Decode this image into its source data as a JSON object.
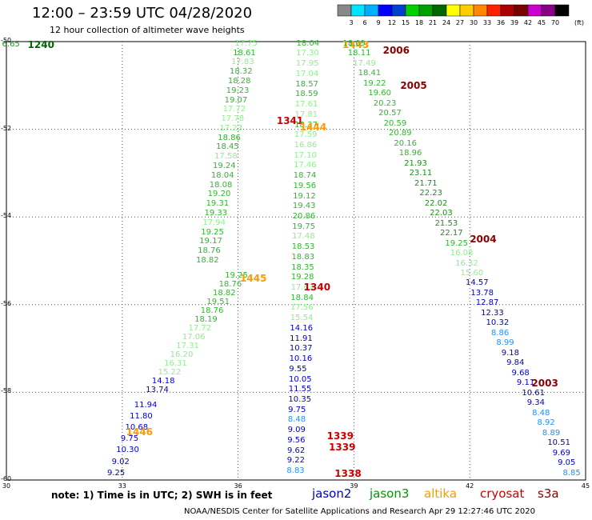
{
  "header": {
    "title": "12:00 – 23:59 UTC 04/28/2020",
    "subtitle": "12 hour collection of altimeter wave heights",
    "credit": "NOAA/NESDIS Center for Satellite Applications and Research    Apr 29 12:27:46 UTC 2020"
  },
  "note": "note:  1) Time is in UTC;  2) SWH is in feet",
  "satellites": [
    {
      "name": "jason2",
      "color": "#0000cc"
    },
    {
      "name": "jason3",
      "color": "#009900"
    },
    {
      "name": "altika",
      "color": "#ff9900"
    },
    {
      "name": "cryosat",
      "color": "#cc0000"
    },
    {
      "name": "s3a",
      "color": "#880000"
    }
  ],
  "colorbar": {
    "unit": "(ft)",
    "colors": [
      "#888888",
      "#00e5ff",
      "#00b0ff",
      "#0000ff",
      "#0040cc",
      "#00d000",
      "#00a000",
      "#006600",
      "#ffff00",
      "#ffcc00",
      "#ff8800",
      "#ff2200",
      "#aa0000",
      "#770000",
      "#cc00cc",
      "#880088",
      "#000000"
    ],
    "labels": [
      "3",
      "6",
      "9",
      "12",
      "15",
      "18",
      "21",
      "24",
      "27",
      "30",
      "33",
      "36",
      "39",
      "42",
      "45",
      "70"
    ]
  },
  "map": {
    "lon_range": [
      30,
      45
    ],
    "lat_range": [
      -60,
      -50
    ],
    "x_ticks": [
      "30",
      "33",
      "36",
      "39",
      "42",
      "45"
    ],
    "y_ticks": [
      "-50",
      "-52",
      "-54",
      "-56",
      "-58",
      "-60"
    ],
    "grid": "dotted"
  },
  "tracks": [
    {
      "label": "1240",
      "color": "#006600",
      "lon": 30.55,
      "lat": -50.08,
      "values": [
        "6.65"
      ]
    },
    {
      "label": "1445",
      "color": "#ff9900",
      "lon": 36.05,
      "lat": -55.4,
      "values": [
        "19.25",
        "18.76",
        "18.82",
        "19.51",
        "18.76",
        "18.19",
        "17.72",
        "17.06",
        "17.31",
        "16.20",
        "16.31",
        "15.22",
        "14.18",
        "13.74"
      ]
    },
    {
      "label": "1446",
      "color": "#ff9900",
      "lon": 33.1,
      "lat": -58.9,
      "values": [
        "11.94",
        "11.80",
        "10.68",
        "9.75",
        "10.30",
        "9.02",
        "9.25"
      ]
    },
    {
      "label": "1341",
      "color": "#cc0000",
      "lon": 37.0,
      "lat": -51.8,
      "values": [
        "17.75",
        "18.61",
        "17.83",
        "18.32",
        "18.28",
        "19.23",
        "19.07",
        "17.72",
        "17.78",
        "17.23",
        "18.86",
        "18.45",
        "17.58",
        "19.24",
        "18.04",
        "18.08",
        "19.20",
        "19.31",
        "19.33",
        "17.94",
        "19.25",
        "19.17",
        "18.76",
        "18.82"
      ]
    },
    {
      "label": "1444",
      "color": "#ff9900",
      "lon": 37.6,
      "lat": -51.95,
      "values": [
        "18.04",
        "17.30",
        "17.95",
        "17.04",
        "18.57",
        "18.59",
        "17.61",
        "17.81",
        "18.37",
        "17.59",
        "16.86",
        "17.10",
        "17.46",
        "18.74",
        "19.56",
        "19.12",
        "19.43",
        "20.86",
        "19.75",
        "17.48",
        "18.53",
        "18.83",
        "18.35",
        "19.28",
        "17.63",
        "18.84",
        "17.56",
        "15.54",
        "14.16",
        "11.91",
        "10.37",
        "10.16",
        "9.55",
        "10.05",
        "11.55",
        "10.35",
        "9.75",
        "8.48",
        "9.09",
        "9.56",
        "9.62",
        "9.22",
        "8.83"
      ]
    },
    {
      "label": "1340",
      "color": "#cc0000",
      "lon": 37.7,
      "lat": -55.6,
      "values": []
    },
    {
      "label": "1339",
      "color": "#cc0000",
      "lon": 38.3,
      "lat": -59.0,
      "values": []
    },
    {
      "label": "1339",
      "color": "#cc0000",
      "lon": 38.35,
      "lat": -59.25,
      "values": []
    },
    {
      "label": "1338",
      "color": "#cc0000",
      "lon": 38.5,
      "lat": -59.85,
      "values": []
    },
    {
      "label": "1443",
      "color": "#ff9900",
      "lon": 38.7,
      "lat": -50.08,
      "values": []
    },
    {
      "label": "2006",
      "color": "#880000",
      "lon": 39.75,
      "lat": -50.2,
      "values": [
        "18.09",
        "18.11",
        "17.49",
        "18.41",
        "19.22",
        "19.60",
        "20.23",
        "20.57",
        "20.59",
        "20.89",
        "20.16",
        "18.96",
        "21.93",
        "23.11",
        "21.71",
        "22.23",
        "22.02",
        "22.03",
        "21.53",
        "22.17",
        "19.25",
        "16.08",
        "16.32",
        "15.60",
        "14.57",
        "13.78",
        "12.87",
        "12.33",
        "10.32",
        "8.86",
        "8.99",
        "9.18",
        "9.84",
        "9.68",
        "9.11",
        "10.61",
        "9.34",
        "8.48",
        "8.92",
        "8.89",
        "10.51",
        "9.69",
        "9.05",
        "8.85"
      ]
    },
    {
      "label": "2005",
      "color": "#880000",
      "lon": 40.2,
      "lat": -51.0,
      "values": []
    },
    {
      "label": "2004",
      "color": "#880000",
      "lon": 42.0,
      "lat": -54.5,
      "values": []
    },
    {
      "label": "2003",
      "color": "#880000",
      "lon": 43.6,
      "lat": -57.8,
      "values": []
    }
  ]
}
